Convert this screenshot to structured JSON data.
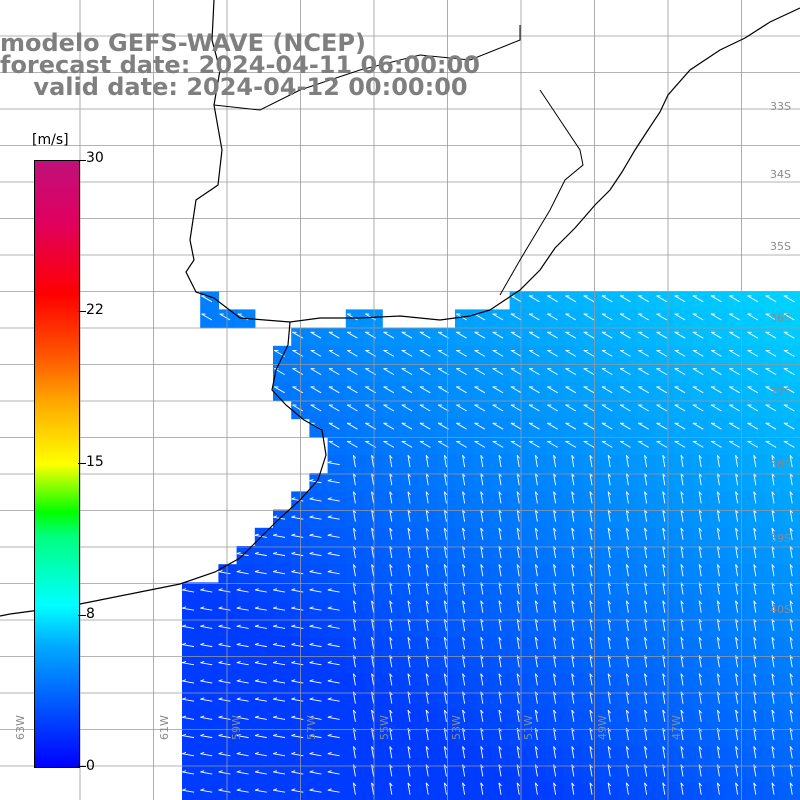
{
  "title": {
    "line1": "modelo GEFS-WAVE (NCEP)",
    "line2": "forecast date: 2024-04-11 06:00:00",
    "line3": "    valid date: 2024-04-12 00:00:00"
  },
  "colorbar": {
    "unit": "[m/s]",
    "ticks": [
      "30",
      "22",
      "15",
      "8",
      "0"
    ],
    "colors": [
      "#0000ff",
      "#00aaff",
      "#00ffff",
      "#00ff00",
      "#ffff00",
      "#ff0000",
      "#c0107a"
    ]
  },
  "lon_labels": [
    "63W",
    "61W",
    "59W",
    "57W",
    "55W",
    "53W",
    "51W",
    "49W",
    "47W"
  ],
  "lat_labels": [
    "33S",
    "34S",
    "35S",
    "36S",
    "37S",
    "38S",
    "39S",
    "40S"
  ],
  "colors": {
    "land": "#ffffff",
    "coast": "#000000",
    "grid": "#9a9a9a",
    "title": "#7f7f7f",
    "vector": "#ffffff"
  }
}
